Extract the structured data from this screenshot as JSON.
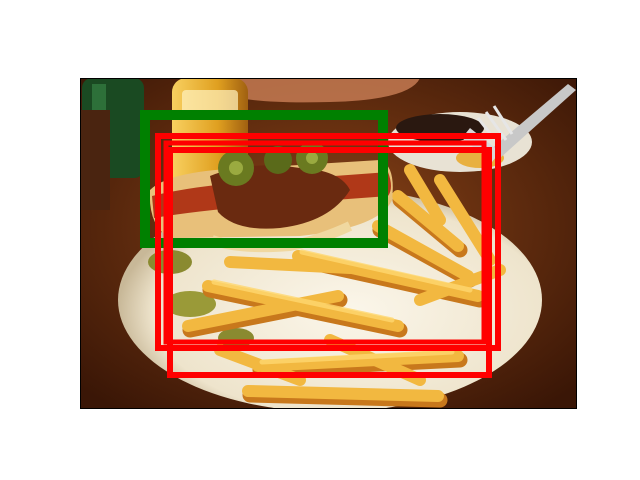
{
  "figure": {
    "background": "#ffffff",
    "photo_frame_color": "#000000",
    "subject": "hot-dog-with-fries"
  },
  "colors": {
    "table": "#5a2a10",
    "plate": "#f2ece0",
    "fries": "#f0b23a",
    "fries_shade": "#c8781c",
    "bun": "#e8c07a",
    "sausage": "#b03818",
    "chili": "#6a2a10",
    "jalapeno": "#6a7a20",
    "bottle_glass": "#1e5a2a",
    "bottle_yellow": "#e8b030",
    "ground_truth_box": "#008000",
    "prediction_box": "#ff0000"
  },
  "boxes": {
    "ground_truth": [
      {
        "name": "green-box",
        "label": ""
      }
    ],
    "predictions": [
      {
        "name": "red-box-1",
        "label": ""
      },
      {
        "name": "red-box-2",
        "label": ""
      },
      {
        "name": "red-box-3",
        "label": ""
      }
    ]
  }
}
